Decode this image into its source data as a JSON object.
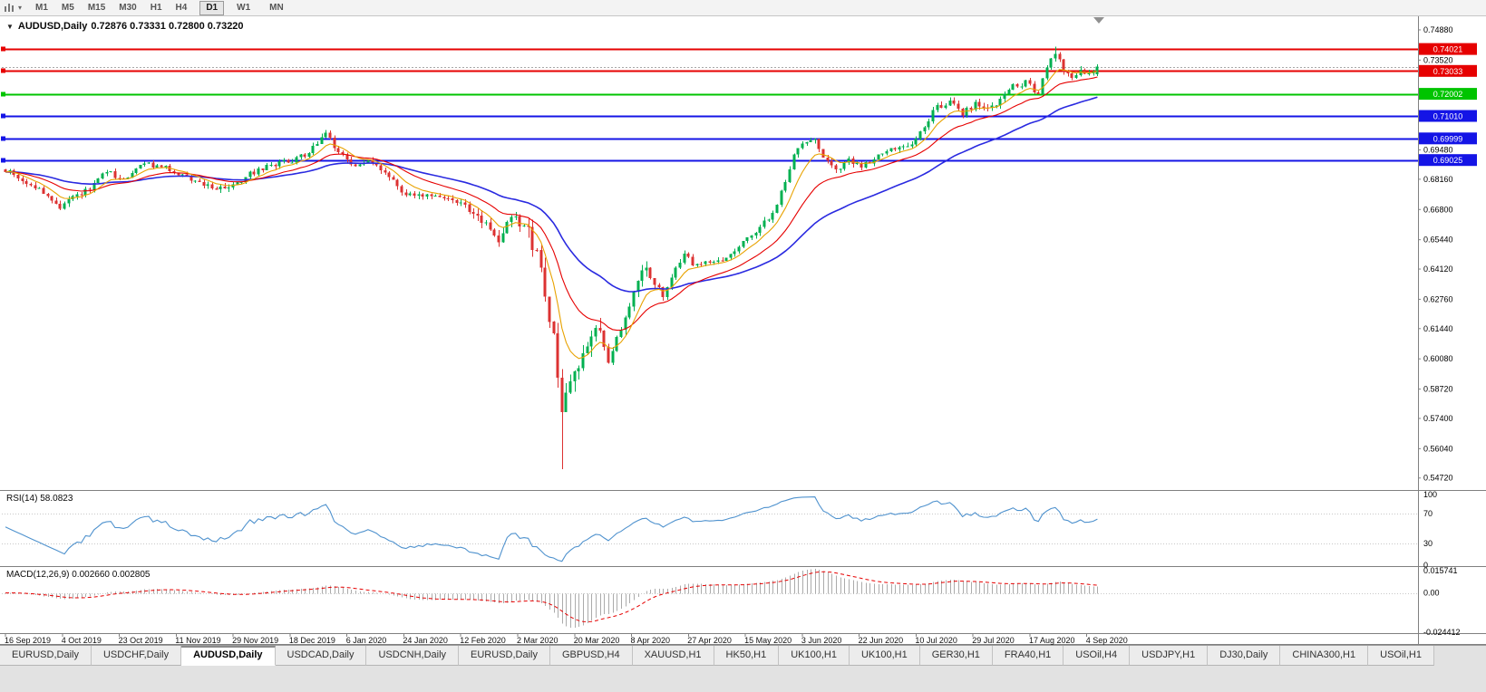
{
  "toolbar": {
    "timeframes": [
      "M1",
      "M5",
      "M15",
      "M30",
      "H1",
      "H4",
      "D1",
      "W1",
      "MN"
    ],
    "active_timeframe": "D1"
  },
  "chart": {
    "title_symbol": "AUDUSD,Daily",
    "ohlc_text": "0.72876 0.73331 0.72800 0.73220"
  },
  "chart_data": {
    "type": "candlestick",
    "symbol": "AUDUSD",
    "timeframe": "Daily",
    "current_ohlc": {
      "open": 0.72876,
      "high": 0.73331,
      "low": 0.728,
      "close": 0.7322
    },
    "x_axis_labels": [
      "16 Sep 2019",
      "4 Oct 2019",
      "23 Oct 2019",
      "11 Nov 2019",
      "29 Nov 2019",
      "18 Dec 2019",
      "6 Jan 2020",
      "24 Jan 2020",
      "12 Feb 2020",
      "2 Mar 2020",
      "20 Mar 2020",
      "8 Apr 2020",
      "27 Apr 2020",
      "15 May 2020",
      "3 Jun 2020",
      "22 Jun 2020",
      "10 Jul 2020",
      "29 Jul 2020",
      "17 Aug 2020",
      "4 Sep 2020"
    ],
    "y_axis_ticks": [
      "0.74880",
      "0.73520",
      "0.69480",
      "0.68160",
      "0.66800",
      "0.65440",
      "0.64120",
      "0.62760",
      "0.61440",
      "0.60080",
      "0.58720",
      "0.57400",
      "0.56040",
      "0.54720"
    ],
    "price_range": {
      "top": 0.7549,
      "bottom": 0.5418
    },
    "candle_count": 260,
    "grid": false,
    "horizontal_lines": [
      {
        "price": 0.74021,
        "label": "0.74021",
        "color": "#E60000"
      },
      {
        "price": 0.73033,
        "label": "0.73033",
        "color": "#E60000"
      },
      {
        "price": 0.72002,
        "label": "0.72002",
        "color": "#00C400"
      },
      {
        "price": 0.7101,
        "label": "0.71010",
        "color": "#1414E6"
      },
      {
        "price": 0.69999,
        "label": "0.69999",
        "color": "#1414E6"
      },
      {
        "price": 0.69025,
        "label": "0.69025",
        "color": "#1414E6"
      }
    ],
    "current_price_line": {
      "price": 0.7322,
      "color": "#A8A8A8"
    },
    "price_anchors": [
      [
        0,
        0.686
      ],
      [
        4,
        0.6805
      ],
      [
        9,
        0.676
      ],
      [
        13,
        0.669
      ],
      [
        16,
        0.673
      ],
      [
        20,
        0.678
      ],
      [
        24,
        0.685
      ],
      [
        28,
        0.6815
      ],
      [
        33,
        0.6885
      ],
      [
        38,
        0.6868
      ],
      [
        43,
        0.6825
      ],
      [
        48,
        0.6788
      ],
      [
        53,
        0.6772
      ],
      [
        58,
        0.684
      ],
      [
        63,
        0.6882
      ],
      [
        68,
        0.6898
      ],
      [
        72,
        0.6935
      ],
      [
        76,
        0.7018
      ],
      [
        79,
        0.6938
      ],
      [
        82,
        0.6872
      ],
      [
        86,
        0.6898
      ],
      [
        90,
        0.6852
      ],
      [
        95,
        0.6742
      ],
      [
        100,
        0.6748
      ],
      [
        105,
        0.6732
      ],
      [
        110,
        0.6682
      ],
      [
        114,
        0.6602
      ],
      [
        117,
        0.6548
      ],
      [
        120,
        0.6645
      ],
      [
        124,
        0.6582
      ],
      [
        126,
        0.6482
      ],
      [
        128,
        0.6312
      ],
      [
        130,
        0.6105
      ],
      [
        132,
        0.5768
      ],
      [
        133,
        0.5825
      ],
      [
        135,
        0.5952
      ],
      [
        137,
        0.6052
      ],
      [
        140,
        0.6142
      ],
      [
        143,
        0.6005
      ],
      [
        146,
        0.6125
      ],
      [
        149,
        0.6305
      ],
      [
        151,
        0.6422
      ],
      [
        154,
        0.6352
      ],
      [
        156,
        0.6285
      ],
      [
        159,
        0.6405
      ],
      [
        161,
        0.6478
      ],
      [
        164,
        0.6422
      ],
      [
        167,
        0.6452
      ],
      [
        171,
        0.6462
      ],
      [
        175,
        0.6532
      ],
      [
        179,
        0.6602
      ],
      [
        182,
        0.6662
      ],
      [
        185,
        0.6805
      ],
      [
        187,
        0.6925
      ],
      [
        190,
        0.6992
      ],
      [
        192,
        0.7002
      ],
      [
        194,
        0.6922
      ],
      [
        197,
        0.6855
      ],
      [
        200,
        0.6908
      ],
      [
        203,
        0.6872
      ],
      [
        206,
        0.6902
      ],
      [
        209,
        0.6942
      ],
      [
        212,
        0.6952
      ],
      [
        215,
        0.6982
      ],
      [
        218,
        0.7062
      ],
      [
        221,
        0.7142
      ],
      [
        224,
        0.7162
      ],
      [
        227,
        0.7112
      ],
      [
        230,
        0.7152
      ],
      [
        233,
        0.7132
      ],
      [
        236,
        0.7172
      ],
      [
        239,
        0.7232
      ],
      [
        242,
        0.7252
      ],
      [
        245,
        0.7202
      ],
      [
        247,
        0.7322
      ],
      [
        249,
        0.7392
      ],
      [
        251,
        0.7292
      ],
      [
        253,
        0.7282
      ],
      [
        255,
        0.7302
      ],
      [
        257,
        0.7292
      ],
      [
        259,
        0.7322
      ]
    ],
    "volatility_zones": [
      {
        "from": 0,
        "to": 109,
        "v": 0.0024
      },
      {
        "from": 110,
        "to": 123,
        "v": 0.004
      },
      {
        "from": 124,
        "to": 141,
        "v": 0.0078
      },
      {
        "from": 142,
        "to": 152,
        "v": 0.0045
      },
      {
        "from": 153,
        "to": 259,
        "v": 0.0026
      }
    ],
    "forced_points": {
      "crash_low": {
        "index": 132,
        "low": 0.5512
      },
      "sep_high": {
        "index": 249,
        "high": 0.7413
      }
    },
    "colors": {
      "up": "#00B050",
      "down": "#DC3232",
      "ma_fast": "#E8A200",
      "ma_mid": "#E60000",
      "ma_slow": "#2A2AE0"
    },
    "ma_periods": {
      "fast": 8,
      "mid": 20,
      "slow": 45
    },
    "rsi": {
      "label": "RSI(14) 58.0823",
      "period": 14,
      "value": 58.0823,
      "levels": [
        "100",
        "70",
        "30",
        "0"
      ],
      "dotted_levels": [
        70,
        30
      ],
      "line_color": "#4F92CE"
    },
    "macd": {
      "label": "MACD(12,26,9) 0.002660 0.002805",
      "params": "12,26,9",
      "values": [
        0.00266,
        0.002805
      ],
      "levels": [
        "0.015741",
        "0.00",
        "-0.024412"
      ],
      "range": {
        "max": 0.015741,
        "min": -0.024412
      },
      "histogram_color": "#ABABAB",
      "signal_color": "#E60000"
    }
  },
  "tabbar": {
    "tabs": [
      "EURUSD,Daily",
      "USDCHF,Daily",
      "AUDUSD,Daily",
      "USDCAD,Daily",
      "USDCNH,Daily",
      "EURUSD,Daily",
      "GBPUSD,H4",
      "XAUUSD,H1",
      "HK50,H1",
      "UK100,H1",
      "UK100,H1",
      "GER30,H1",
      "FRA40,H1",
      "USOil,H4",
      "USDJPY,H1",
      "DJ30,Daily",
      "CHINA300,H1",
      "USOil,H1"
    ],
    "active_tab_index": 2
  }
}
